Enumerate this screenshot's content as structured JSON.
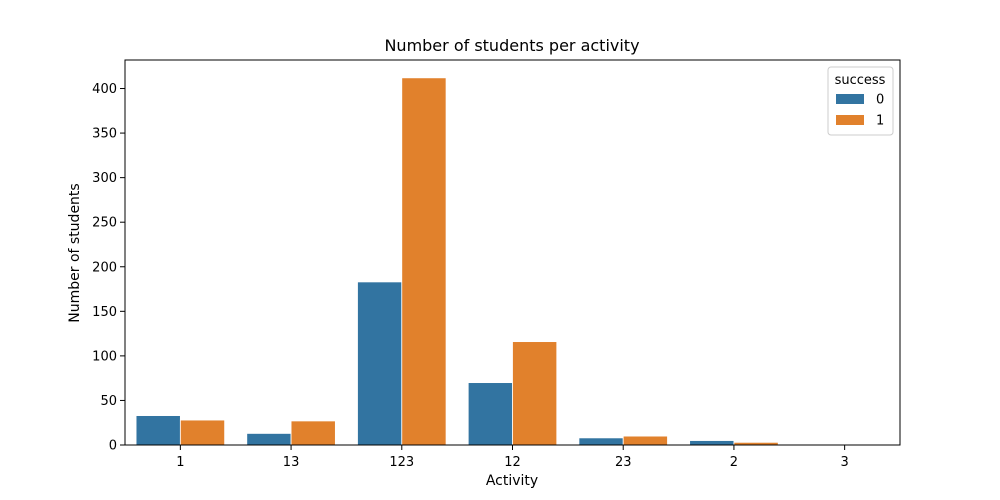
{
  "chart_data": {
    "type": "bar",
    "title": "Number of students per activity",
    "xlabel": "Activity",
    "ylabel": "Number of students",
    "categories": [
      "1",
      "13",
      "123",
      "12",
      "23",
      "2",
      "3"
    ],
    "series": [
      {
        "name": "0",
        "color": "#3274a1",
        "values": [
          33,
          13,
          183,
          70,
          8,
          5,
          1
        ]
      },
      {
        "name": "1",
        "color": "#e1812c",
        "values": [
          28,
          27,
          412,
          116,
          10,
          3,
          0
        ]
      }
    ],
    "ylim": [
      0,
      432
    ],
    "yticks": [
      0,
      50,
      100,
      150,
      200,
      250,
      300,
      350,
      400
    ],
    "grid": false,
    "legend": {
      "title": "success",
      "placement": "top-right"
    }
  }
}
